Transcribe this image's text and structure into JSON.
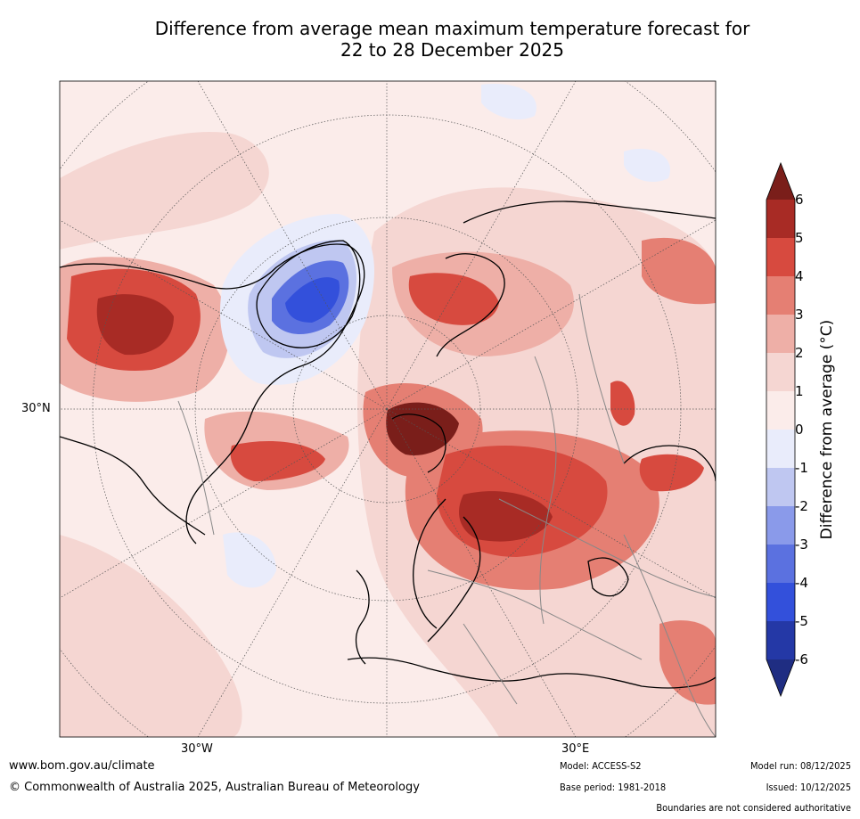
{
  "title_line1": "Difference from average mean maximum temperature forecast for",
  "title_line2": "22 to 28 December 2025",
  "map": {
    "lat_label": "30°N",
    "lon_labels": [
      "30°W",
      "30°E"
    ]
  },
  "colorbar": {
    "label": "Difference from average (°C)",
    "ticks": [
      "6",
      "5",
      "4",
      "3",
      "2",
      "1",
      "0",
      "-1",
      "-2",
      "-3",
      "-4",
      "-5",
      "-6"
    ],
    "colors": [
      "#7a1e1a",
      "#a82b25",
      "#d74a3f",
      "#e57f73",
      "#eeafa7",
      "#f5d6d2",
      "#fbecea",
      "#e9ecfb",
      "#bfc7f1",
      "#8a9aea",
      "#5b71e0",
      "#3350db",
      "#2438a6",
      "#1f2d82"
    ]
  },
  "footer": {
    "website": "www.bom.gov.au/climate",
    "copyright": "© Commonwealth of Australia 2025, Australian Bureau of Meteorology",
    "model": "Model: ACCESS-S2",
    "base_period": "Base period: 1981-2018",
    "model_run": "Model run: 08/12/2025",
    "issued": "Issued: 10/12/2025",
    "disclaimer": "Boundaries are not considered authoritative"
  }
}
